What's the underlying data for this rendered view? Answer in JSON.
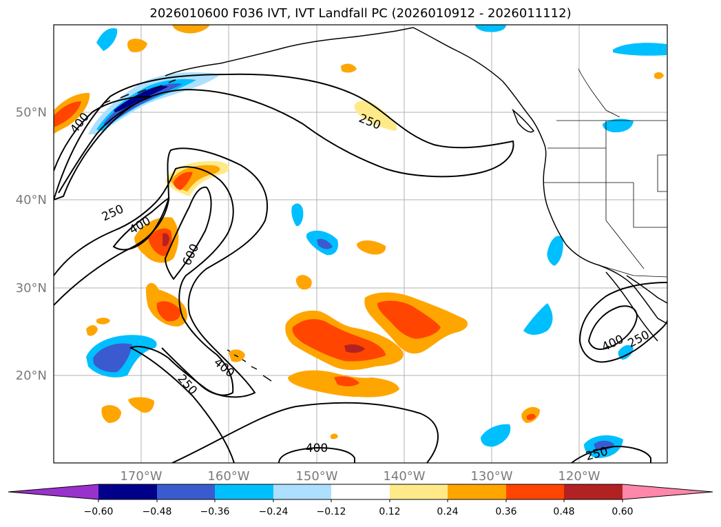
{
  "title": "2026010600 F036 IVT, IVT Landfall PC (2026010912 - 2026011112)",
  "lat_labels": [
    "50°N",
    "40°N",
    "30°N",
    "20°N"
  ],
  "lon_labels": [
    "170°W",
    "160°W",
    "150°W",
    "140°W",
    "130°W",
    "120°W"
  ],
  "contour_labels": [
    "250",
    "250",
    "400",
    "400",
    "600",
    "400",
    "250",
    "400",
    "400",
    "250",
    "250"
  ],
  "colorbar": {
    "ticks": [
      "−0.60",
      "−0.48",
      "−0.36",
      "−0.24",
      "−0.12",
      "0.12",
      "0.24",
      "0.36",
      "0.48",
      "0.60"
    ],
    "colors": [
      "#9932cc",
      "#00008b",
      "#3a5bd0",
      "#00bfff",
      "#addfff",
      "#ffffff",
      "#ffea8a",
      "#ffa500",
      "#ff4500",
      "#b22222",
      "#ff88aa"
    ]
  },
  "chart_data": {
    "type": "map",
    "title": "2026010600 F036 IVT, IVT Landfall PC (2026010912 - 2026011112)",
    "lon_range": [
      -180,
      -110
    ],
    "lat_range": [
      10,
      60
    ],
    "ivt_contour_levels": [
      250,
      400,
      600
    ],
    "pc_levels": [
      -0.6,
      -0.48,
      -0.36,
      -0.24,
      -0.12,
      0.12,
      0.24,
      0.36,
      0.48,
      0.6
    ],
    "grid": true
  }
}
